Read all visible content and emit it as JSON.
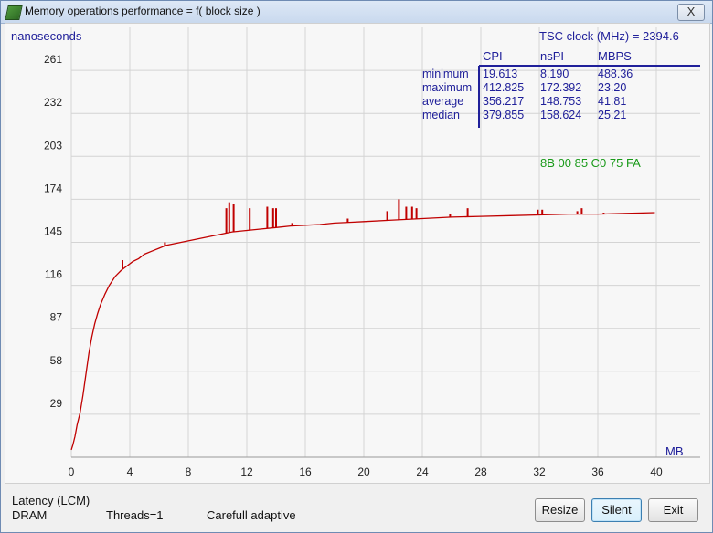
{
  "window": {
    "title": "Memory operations performance = f( block size )",
    "close_label": "X"
  },
  "chart": {
    "y_unit_label": "nanoseconds",
    "x_unit_label": "MB",
    "tsc_label": "TSC clock (MHz)  = 2394.6",
    "hex_code": "8B  00  85   C0  75   FA",
    "stats": {
      "headers": [
        "CPI",
        "nsPI",
        "MBPS"
      ],
      "rows": [
        {
          "label": "minimum",
          "values": [
            "19.613",
            "8.190",
            "488.36"
          ]
        },
        {
          "label": "maximum",
          "values": [
            "412.825",
            "172.392",
            "23.20"
          ]
        },
        {
          "label": "average",
          "values": [
            "356.217",
            "148.753",
            "41.81"
          ]
        },
        {
          "label": "median",
          "values": [
            "379.855",
            "158.624",
            "25.21"
          ]
        }
      ]
    },
    "colors": {
      "line": "#c00000",
      "axis_text": "#20209a",
      "grid": "#d4d4d4",
      "hex_text": "#1a9a1a"
    }
  },
  "chart_data": {
    "type": "line",
    "title": "",
    "xlabel": "MB",
    "ylabel": "nanoseconds",
    "xlim": [
      0,
      40
    ],
    "ylim": [
      0,
      290
    ],
    "x_ticks": [
      0,
      4,
      8,
      12,
      16,
      20,
      24,
      28,
      32,
      36,
      40
    ],
    "y_ticks": [
      29,
      58,
      87,
      116,
      145,
      174,
      203,
      232,
      261
    ],
    "grid": true,
    "series": [
      {
        "x": [
          0,
          0.1,
          0.25,
          0.4,
          0.6,
          0.8,
          1.0,
          1.2,
          1.4,
          1.6,
          1.8,
          2.0,
          2.3,
          2.6,
          3.0,
          3.4,
          3.8,
          4.2,
          4.6,
          5.0,
          5.5,
          6.0,
          6.5,
          7.0,
          7.5,
          8.0,
          9.0,
          10.0,
          10.5,
          11.0,
          12.0,
          13.0,
          14.0,
          15.0,
          16.0,
          17.0,
          18.0,
          19.0,
          20.0,
          22.0,
          24.0,
          26.0,
          28.0,
          30.0,
          32.0,
          34.0,
          36.0,
          38.0,
          39.9
        ],
        "y": [
          5,
          8,
          14,
          22,
          30,
          42,
          56,
          70,
          81,
          90,
          97,
          103,
          110,
          116,
          122,
          126,
          129,
          132,
          134,
          137,
          139,
          141,
          143,
          144,
          145,
          146,
          148,
          150,
          151,
          152,
          153,
          154,
          155,
          156,
          156.5,
          157,
          158,
          158.5,
          159,
          160,
          161,
          162,
          162.5,
          163,
          163.5,
          164,
          164,
          164.5,
          165
        ]
      }
    ],
    "spikes": [
      {
        "x": 3.5,
        "y": 133
      },
      {
        "x": 6.4,
        "y": 145
      },
      {
        "x": 10.6,
        "y": 168
      },
      {
        "x": 10.8,
        "y": 172
      },
      {
        "x": 11.1,
        "y": 171
      },
      {
        "x": 12.2,
        "y": 168
      },
      {
        "x": 13.4,
        "y": 169
      },
      {
        "x": 13.8,
        "y": 168
      },
      {
        "x": 14.0,
        "y": 168
      },
      {
        "x": 15.1,
        "y": 158
      },
      {
        "x": 18.9,
        "y": 161
      },
      {
        "x": 21.6,
        "y": 166
      },
      {
        "x": 22.4,
        "y": 174
      },
      {
        "x": 22.9,
        "y": 169
      },
      {
        "x": 23.3,
        "y": 169
      },
      {
        "x": 23.6,
        "y": 168
      },
      {
        "x": 25.9,
        "y": 164
      },
      {
        "x": 27.1,
        "y": 168
      },
      {
        "x": 31.9,
        "y": 167
      },
      {
        "x": 32.2,
        "y": 167
      },
      {
        "x": 34.6,
        "y": 166
      },
      {
        "x": 34.9,
        "y": 168
      },
      {
        "x": 36.4,
        "y": 165
      }
    ]
  },
  "status": {
    "latency": "Latency  (LCM)",
    "memory": "DRAM",
    "threads": "Threads=1",
    "mode": "Carefull adaptive"
  },
  "buttons": {
    "resize": "Resize",
    "silent": "Silent",
    "exit": "Exit"
  }
}
